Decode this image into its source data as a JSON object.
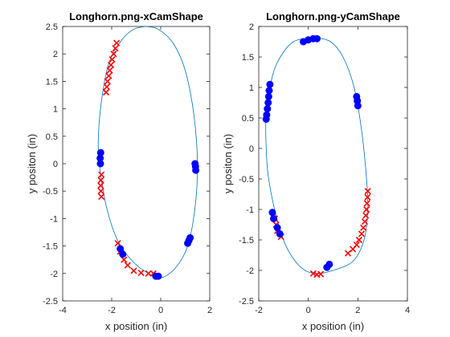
{
  "chart_data": [
    {
      "type": "scatter",
      "title": "Longhorn.png-xCamShape",
      "xlabel": "x position (in)",
      "ylabel": "y positon (in)",
      "xlim": [
        -4,
        2
      ],
      "ylim": [
        -2.5,
        2.5
      ],
      "xticks": [
        "-4",
        "-2",
        "0",
        "2"
      ],
      "yticks": [
        "-2.5",
        "-2",
        "-1.5",
        "-1",
        "-0.5",
        "0",
        "0.5",
        "1",
        "1.5",
        "2",
        "2.5"
      ],
      "grid": false,
      "series": [
        {
          "kind": "curve",
          "color": "#0072BD",
          "points": [
            [
              -0.6,
              2.5
            ],
            [
              -0.1,
              2.45
            ],
            [
              0.5,
              2.2
            ],
            [
              1.0,
              1.7
            ],
            [
              1.35,
              0.9
            ],
            [
              1.5,
              0.0
            ],
            [
              1.4,
              -0.8
            ],
            [
              1.1,
              -1.5
            ],
            [
              0.6,
              -1.9
            ],
            [
              0.0,
              -2.08
            ],
            [
              -0.5,
              -2.0
            ],
            [
              -1.1,
              -1.8
            ],
            [
              -1.7,
              -1.45
            ],
            [
              -2.15,
              -0.9
            ],
            [
              -2.45,
              -0.2
            ],
            [
              -2.55,
              0.4
            ],
            [
              -2.4,
              1.2
            ],
            [
              -2.1,
              1.85
            ],
            [
              -1.6,
              2.25
            ],
            [
              -1.1,
              2.45
            ],
            [
              -0.6,
              2.5
            ]
          ]
        },
        {
          "kind": "markers",
          "marker": "x",
          "color": "#FF0000",
          "points": [
            [
              -1.8,
              2.2
            ],
            [
              -1.85,
              2.1
            ],
            [
              -1.92,
              2.0
            ],
            [
              -1.98,
              1.9
            ],
            [
              -2.03,
              1.8
            ],
            [
              -2.08,
              1.7
            ],
            [
              -2.12,
              1.6
            ],
            [
              -2.17,
              1.5
            ],
            [
              -2.2,
              1.4
            ],
            [
              -2.23,
              1.3
            ],
            [
              -2.42,
              -0.2
            ],
            [
              -2.44,
              -0.3
            ],
            [
              -2.45,
              -0.4
            ],
            [
              -2.44,
              -0.5
            ],
            [
              -2.42,
              -0.6
            ],
            [
              -1.75,
              -1.45
            ],
            [
              -1.65,
              -1.6
            ],
            [
              -1.5,
              -1.75
            ],
            [
              -1.35,
              -1.85
            ],
            [
              -1.1,
              -1.95
            ],
            [
              -0.8,
              -1.99
            ],
            [
              -0.5,
              -2.0
            ],
            [
              -0.3,
              -2.0
            ]
          ]
        },
        {
          "kind": "markers",
          "marker": "o",
          "color": "#0000FF",
          "points": [
            [
              -2.45,
              0.2
            ],
            [
              -2.47,
              0.1
            ],
            [
              -2.46,
              0.0
            ],
            [
              1.4,
              0.0
            ],
            [
              1.42,
              -0.05
            ],
            [
              1.43,
              -0.12
            ],
            [
              1.1,
              -1.45
            ],
            [
              1.15,
              -1.4
            ],
            [
              1.2,
              -1.35
            ],
            [
              -1.65,
              -1.55
            ],
            [
              -1.55,
              -1.65
            ],
            [
              -0.1,
              -2.05
            ],
            [
              -0.2,
              -2.05
            ]
          ]
        }
      ]
    },
    {
      "type": "scatter",
      "title": "Longhorn.png-yCamShape",
      "xlabel": "x position (in)",
      "ylabel": "y positon (in)",
      "xlim": [
        -2,
        4
      ],
      "ylim": [
        -2.5,
        2
      ],
      "xticks": [
        "-2",
        "0",
        "2",
        "4"
      ],
      "yticks": [
        "-2.5",
        "-2",
        "-1.5",
        "-1",
        "-0.5",
        "0",
        "0.5",
        "1",
        "1.5",
        "2"
      ],
      "grid": false,
      "series": [
        {
          "kind": "curve",
          "color": "#0072BD",
          "points": [
            [
              0.3,
              1.82
            ],
            [
              0.9,
              1.75
            ],
            [
              1.4,
              1.5
            ],
            [
              1.85,
              1.0
            ],
            [
              2.15,
              0.3
            ],
            [
              2.35,
              -0.5
            ],
            [
              2.4,
              -1.0
            ],
            [
              2.25,
              -1.5
            ],
            [
              1.8,
              -1.85
            ],
            [
              1.0,
              -2.0
            ],
            [
              0.3,
              -2.05
            ],
            [
              -0.3,
              -1.95
            ],
            [
              -0.9,
              -1.6
            ],
            [
              -1.3,
              -1.1
            ],
            [
              -1.6,
              -0.5
            ],
            [
              -1.7,
              0.0
            ],
            [
              -1.7,
              0.6
            ],
            [
              -1.5,
              1.1
            ],
            [
              -1.2,
              1.45
            ],
            [
              -0.6,
              1.75
            ],
            [
              0.3,
              1.82
            ]
          ]
        },
        {
          "kind": "markers",
          "marker": "x",
          "color": "#FF0000",
          "points": [
            [
              2.4,
              -0.7
            ],
            [
              2.39,
              -0.8
            ],
            [
              2.37,
              -0.9
            ],
            [
              2.35,
              -1.0
            ],
            [
              2.32,
              -1.1
            ],
            [
              2.28,
              -1.2
            ],
            [
              2.22,
              -1.3
            ],
            [
              2.15,
              -1.4
            ],
            [
              2.05,
              -1.5
            ],
            [
              1.95,
              -1.58
            ],
            [
              1.8,
              -1.65
            ],
            [
              1.6,
              -1.72
            ],
            [
              -1.35,
              -1.15
            ],
            [
              -1.3,
              -1.25
            ],
            [
              -1.25,
              -1.35
            ],
            [
              -1.1,
              -1.45
            ],
            [
              0.2,
              -2.05
            ],
            [
              0.35,
              -2.07
            ],
            [
              0.5,
              -2.06
            ]
          ]
        },
        {
          "kind": "markers",
          "marker": "o",
          "color": "#0000FF",
          "points": [
            [
              -1.55,
              1.05
            ],
            [
              -1.58,
              0.95
            ],
            [
              -1.6,
              0.85
            ],
            [
              -1.62,
              0.75
            ],
            [
              -1.65,
              0.65
            ],
            [
              -1.68,
              0.55
            ],
            [
              -1.7,
              0.48
            ],
            [
              1.95,
              0.85
            ],
            [
              1.98,
              0.78
            ],
            [
              2.0,
              0.7
            ],
            [
              0.0,
              1.78
            ],
            [
              0.2,
              1.8
            ],
            [
              0.35,
              1.8
            ],
            [
              -0.2,
              1.75
            ],
            [
              -1.45,
              -1.05
            ],
            [
              -1.4,
              -1.15
            ],
            [
              -1.25,
              -1.3
            ],
            [
              -1.15,
              -1.4
            ],
            [
              0.75,
              -1.95
            ],
            [
              0.85,
              -1.9
            ]
          ]
        }
      ]
    }
  ]
}
